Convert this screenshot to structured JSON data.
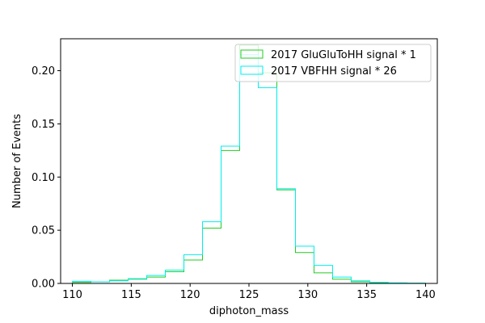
{
  "chart_data": {
    "type": "histogram",
    "xlabel": "diphoton_mass",
    "ylabel": "Number of Events",
    "xlim": [
      109,
      141
    ],
    "ylim": [
      0,
      0.23
    ],
    "x_ticks": [
      110,
      115,
      120,
      125,
      130,
      135,
      140
    ],
    "x_tick_labels": [
      "110",
      "115",
      "120",
      "125",
      "130",
      "135",
      "140"
    ],
    "y_ticks": [
      0.0,
      0.05,
      0.1,
      0.15,
      0.2
    ],
    "y_tick_labels": [
      "0.00",
      "0.05",
      "0.10",
      "0.15",
      "0.20"
    ],
    "bin_edges": [
      110.0,
      111.579,
      113.158,
      114.737,
      116.316,
      117.895,
      119.474,
      121.053,
      122.632,
      124.211,
      125.789,
      127.368,
      128.947,
      130.526,
      132.105,
      133.684,
      135.263,
      136.842,
      138.421,
      140.0
    ],
    "legend_position": "upper right",
    "series": [
      {
        "name": "2017 GluGluToHH signal * 1",
        "color": "#22cc22",
        "values": [
          0.001,
          0.0015,
          0.003,
          0.004,
          0.006,
          0.011,
          0.022,
          0.052,
          0.125,
          0.224,
          0.198,
          0.088,
          0.029,
          0.01,
          0.004,
          0.0015,
          0.0008,
          0.0004,
          0.0002
        ]
      },
      {
        "name": "2017 VBFHH signal * 26",
        "color": "#00eeee",
        "values": [
          0.002,
          0.0015,
          0.0025,
          0.0045,
          0.0075,
          0.0125,
          0.027,
          0.058,
          0.129,
          0.215,
          0.184,
          0.089,
          0.035,
          0.017,
          0.006,
          0.0025,
          0.001,
          0.0006,
          0.0003
        ]
      }
    ]
  }
}
